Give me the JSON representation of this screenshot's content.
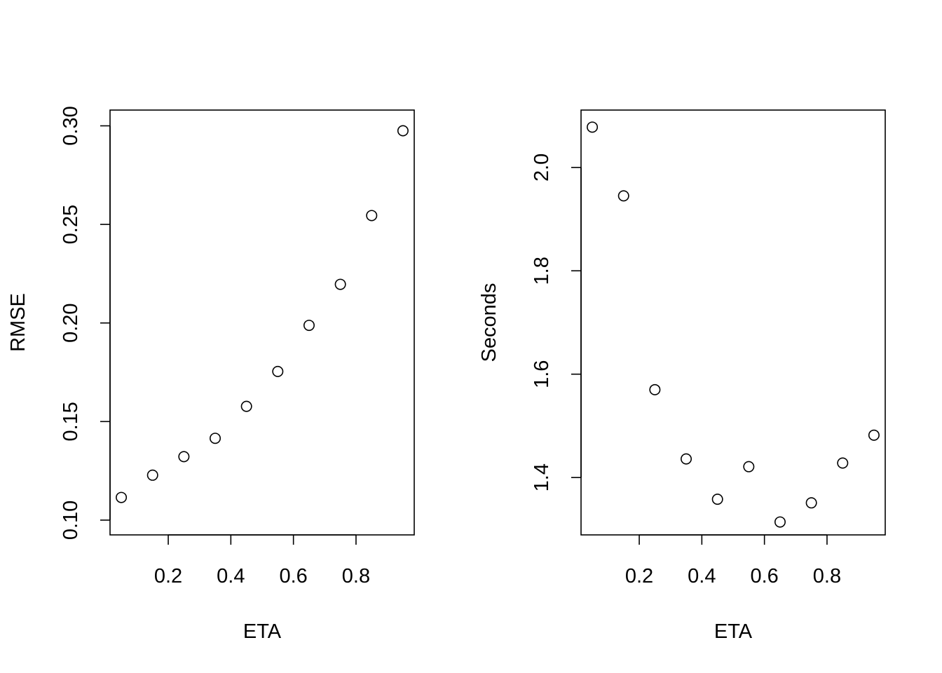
{
  "chart_data": [
    {
      "type": "scatter",
      "title": "",
      "xlabel": "ETA",
      "ylabel": "RMSE",
      "xlim": [
        0.014,
        0.986
      ],
      "ylim": [
        0.0925,
        0.308
      ],
      "x_ticks": [
        0.2,
        0.4,
        0.6,
        0.8
      ],
      "x_tick_labels": [
        "0.2",
        "0.4",
        "0.6",
        "0.8"
      ],
      "y_ticks": [
        0.1,
        0.15,
        0.2,
        0.25,
        0.3
      ],
      "y_tick_labels": [
        "0.10",
        "0.15",
        "0.20",
        "0.25",
        "0.30"
      ],
      "x": [
        0.05,
        0.15,
        0.25,
        0.35,
        0.45,
        0.55,
        0.65,
        0.75,
        0.85,
        0.95
      ],
      "y": [
        0.1115,
        0.1228,
        0.1322,
        0.1415,
        0.1577,
        0.1754,
        0.1988,
        0.2196,
        0.2545,
        0.2975
      ],
      "marker": "open-circle",
      "grid": false
    },
    {
      "type": "scatter",
      "title": "",
      "xlabel": "ETA",
      "ylabel": "Seconds",
      "xlim": [
        0.014,
        0.986
      ],
      "ylim": [
        1.289,
        2.111
      ],
      "x_ticks": [
        0.2,
        0.4,
        0.6,
        0.8
      ],
      "x_tick_labels": [
        "0.2",
        "0.4",
        "0.6",
        "0.8"
      ],
      "y_ticks": [
        1.4,
        1.6,
        1.8,
        2.0
      ],
      "y_tick_labels": [
        "1.4",
        "1.6",
        "1.8",
        "2.0"
      ],
      "x": [
        0.05,
        0.15,
        0.25,
        0.35,
        0.45,
        0.55,
        0.65,
        0.75,
        0.85,
        0.95
      ],
      "y": [
        2.078,
        1.945,
        1.57,
        1.436,
        1.358,
        1.421,
        1.314,
        1.351,
        1.428,
        1.482
      ],
      "marker": "open-circle",
      "grid": false
    }
  ]
}
